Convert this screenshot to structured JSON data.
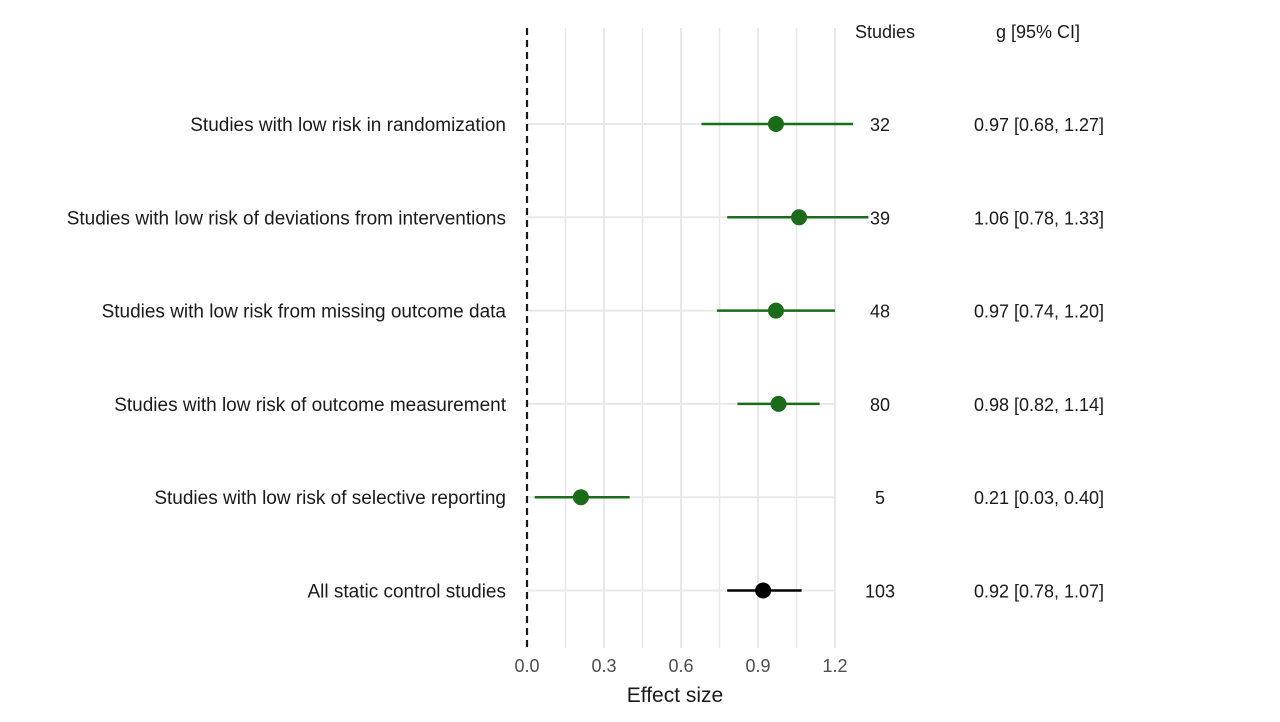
{
  "chart_data": {
    "type": "forest",
    "xlabel": "Effect size",
    "xlim": [
      0.0,
      1.2
    ],
    "x_ticks": [
      0.0,
      0.3,
      0.6,
      0.9,
      1.2
    ],
    "x_tick_labels": [
      "0.0",
      "0.3",
      "0.6",
      "0.9",
      "1.2"
    ],
    "reference_line": {
      "x": 0.0,
      "style": "dashed",
      "color": "#1a1a1a"
    },
    "grid": true,
    "columns": {
      "studies_header": "Studies",
      "ci_header": "g [95% CI]"
    },
    "rows": [
      {
        "label": "Studies with low risk in randomization",
        "estimate": 0.97,
        "lower": 0.68,
        "upper": 1.27,
        "studies": "32",
        "ci_text": "0.97 [0.68, 1.27]",
        "color": "#1a6b1a"
      },
      {
        "label": "Studies with low risk of deviations from interventions",
        "estimate": 1.06,
        "lower": 0.78,
        "upper": 1.33,
        "studies": "39",
        "ci_text": "1.06 [0.78, 1.33]",
        "color": "#1a6b1a"
      },
      {
        "label": "Studies with low risk from missing outcome data",
        "estimate": 0.97,
        "lower": 0.74,
        "upper": 1.2,
        "studies": "48",
        "ci_text": "0.97 [0.74, 1.20]",
        "color": "#1a6b1a"
      },
      {
        "label": "Studies with low risk of outcome measurement",
        "estimate": 0.98,
        "lower": 0.82,
        "upper": 1.14,
        "studies": "80",
        "ci_text": "0.98 [0.82, 1.14]",
        "color": "#1a6b1a"
      },
      {
        "label": "Studies with low risk of selective reporting",
        "estimate": 0.21,
        "lower": 0.03,
        "upper": 0.4,
        "studies": "5",
        "ci_text": "0.21 [0.03, 0.40]",
        "color": "#1a6b1a"
      },
      {
        "label": "All static control studies",
        "estimate": 0.92,
        "lower": 0.78,
        "upper": 1.07,
        "studies": "103",
        "ci_text": "0.92 [0.78, 1.07]",
        "color": "#000000"
      }
    ],
    "colors": {
      "subgroup": "#1a6b1a",
      "overall": "#000000",
      "grid": "#e8e8e8"
    }
  }
}
